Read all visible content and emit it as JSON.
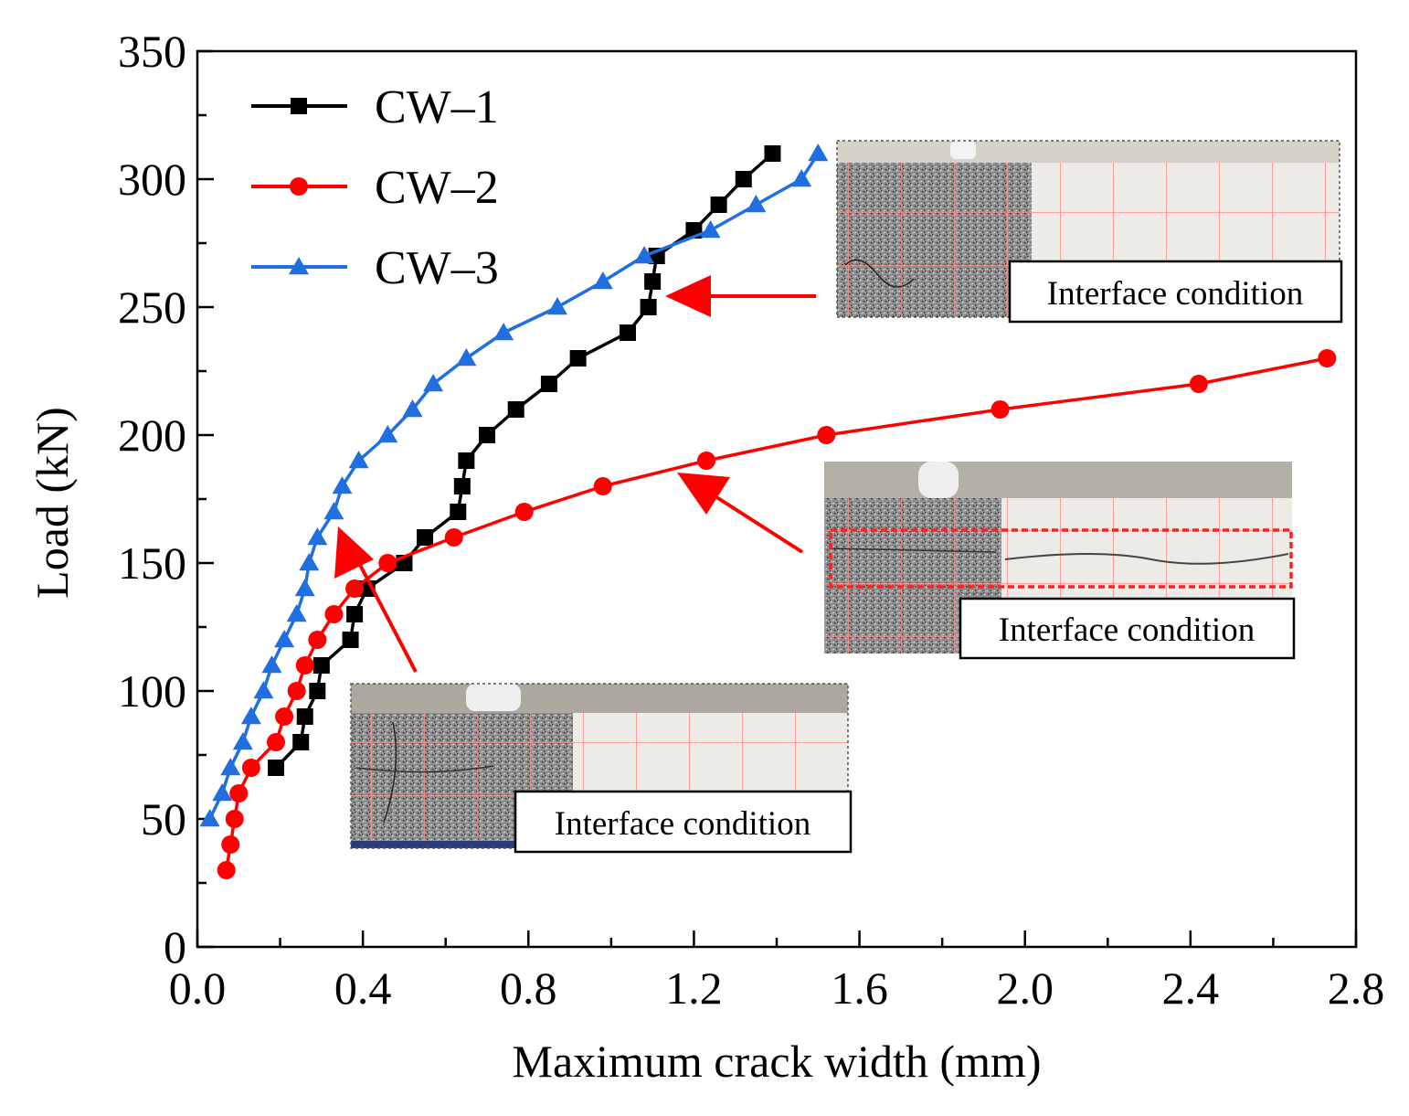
{
  "chart_data": {
    "type": "line",
    "title": "",
    "xlabel": "Maximum crack width (mm)",
    "ylabel": "Load (kN)",
    "xlim": [
      0,
      2.8
    ],
    "ylim": [
      0,
      350
    ],
    "xticks": [
      0.0,
      0.4,
      0.8,
      1.2,
      1.6,
      2.0,
      2.4,
      2.8
    ],
    "xtick_labels": [
      "0.0",
      "0.4",
      "0.8",
      "1.2",
      "1.6",
      "2.0",
      "2.4",
      "2.8"
    ],
    "yticks": [
      0,
      50,
      100,
      150,
      200,
      250,
      300,
      350
    ],
    "ytick_labels": [
      "0",
      "50",
      "100",
      "150",
      "200",
      "250",
      "300",
      "350"
    ],
    "legend_position": "top-left",
    "series": [
      {
        "name": "CW–1",
        "color": "#000000",
        "marker": "square",
        "points": [
          [
            0.19,
            70
          ],
          [
            0.25,
            80
          ],
          [
            0.26,
            90
          ],
          [
            0.29,
            100
          ],
          [
            0.3,
            110
          ],
          [
            0.37,
            120
          ],
          [
            0.38,
            130
          ],
          [
            0.41,
            140
          ],
          [
            0.5,
            150
          ],
          [
            0.55,
            160
          ],
          [
            0.63,
            170
          ],
          [
            0.64,
            180
          ],
          [
            0.65,
            190
          ],
          [
            0.7,
            200
          ],
          [
            0.77,
            210
          ],
          [
            0.85,
            220
          ],
          [
            0.92,
            230
          ],
          [
            1.04,
            240
          ],
          [
            1.09,
            250
          ],
          [
            1.1,
            260
          ],
          [
            1.11,
            270
          ],
          [
            1.2,
            280
          ],
          [
            1.26,
            290
          ],
          [
            1.32,
            300
          ],
          [
            1.39,
            310
          ]
        ]
      },
      {
        "name": "CW–2",
        "color": "#ff0000",
        "marker": "circle",
        "points": [
          [
            0.07,
            30
          ],
          [
            0.08,
            40
          ],
          [
            0.09,
            50
          ],
          [
            0.1,
            60
          ],
          [
            0.13,
            70
          ],
          [
            0.19,
            80
          ],
          [
            0.21,
            90
          ],
          [
            0.24,
            100
          ],
          [
            0.26,
            110
          ],
          [
            0.29,
            120
          ],
          [
            0.33,
            130
          ],
          [
            0.38,
            140
          ],
          [
            0.46,
            150
          ],
          [
            0.62,
            160
          ],
          [
            0.79,
            170
          ],
          [
            0.98,
            180
          ],
          [
            1.23,
            190
          ],
          [
            1.52,
            200
          ],
          [
            1.94,
            210
          ],
          [
            2.42,
            220
          ],
          [
            2.73,
            230
          ]
        ]
      },
      {
        "name": "CW–3",
        "color": "#1f6fe0",
        "marker": "triangle",
        "points": [
          [
            0.03,
            50
          ],
          [
            0.06,
            60
          ],
          [
            0.08,
            70
          ],
          [
            0.11,
            80
          ],
          [
            0.13,
            90
          ],
          [
            0.16,
            100
          ],
          [
            0.18,
            110
          ],
          [
            0.21,
            120
          ],
          [
            0.24,
            130
          ],
          [
            0.26,
            140
          ],
          [
            0.27,
            150
          ],
          [
            0.29,
            160
          ],
          [
            0.33,
            170
          ],
          [
            0.35,
            180
          ],
          [
            0.39,
            190
          ],
          [
            0.46,
            200
          ],
          [
            0.52,
            210
          ],
          [
            0.57,
            220
          ],
          [
            0.65,
            230
          ],
          [
            0.74,
            240
          ],
          [
            0.87,
            250
          ],
          [
            0.98,
            260
          ],
          [
            1.08,
            270
          ],
          [
            1.24,
            280
          ],
          [
            1.35,
            290
          ],
          [
            1.46,
            300
          ],
          [
            1.5,
            310
          ]
        ]
      }
    ],
    "annotations": [
      {
        "label": "Interface condition",
        "series": "CW–1",
        "arrow_color": "#ff0000"
      },
      {
        "label": "Interface condition",
        "series": "CW–2",
        "arrow_color": "#ff0000"
      },
      {
        "label": "Interface condition",
        "series": "CW–3",
        "arrow_color": "#ff0000"
      }
    ]
  },
  "photo_colors": {
    "concrete_dark": "#8e8f8f",
    "concrete_light": "#ecebe6",
    "grid_line": "#ff8a8a",
    "highlight_box": "#ff2020"
  }
}
